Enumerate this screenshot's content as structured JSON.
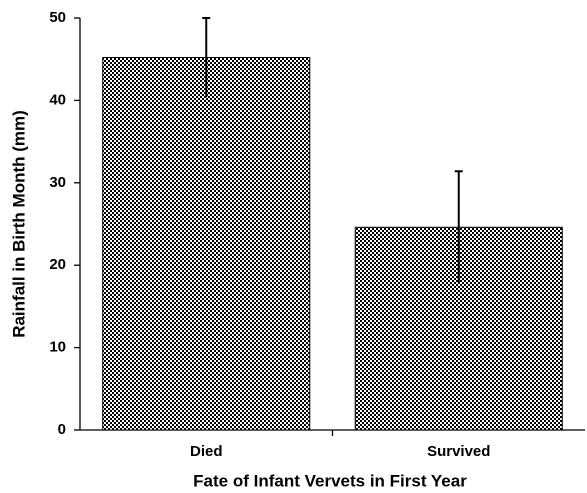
{
  "chart_data": {
    "type": "bar",
    "xlabel": "Fate of Infant Vervets in First Year",
    "ylabel": "Rainfall in Birth Month (mm)",
    "categories": [
      "Died",
      "Survived"
    ],
    "values": [
      45.2,
      24.6
    ],
    "errors": [
      4.8,
      6.8
    ],
    "color": "#000000",
    "ylim": [
      0,
      50
    ],
    "yticks": [
      0,
      10,
      20,
      30,
      40,
      50
    ],
    "grid": false
  }
}
